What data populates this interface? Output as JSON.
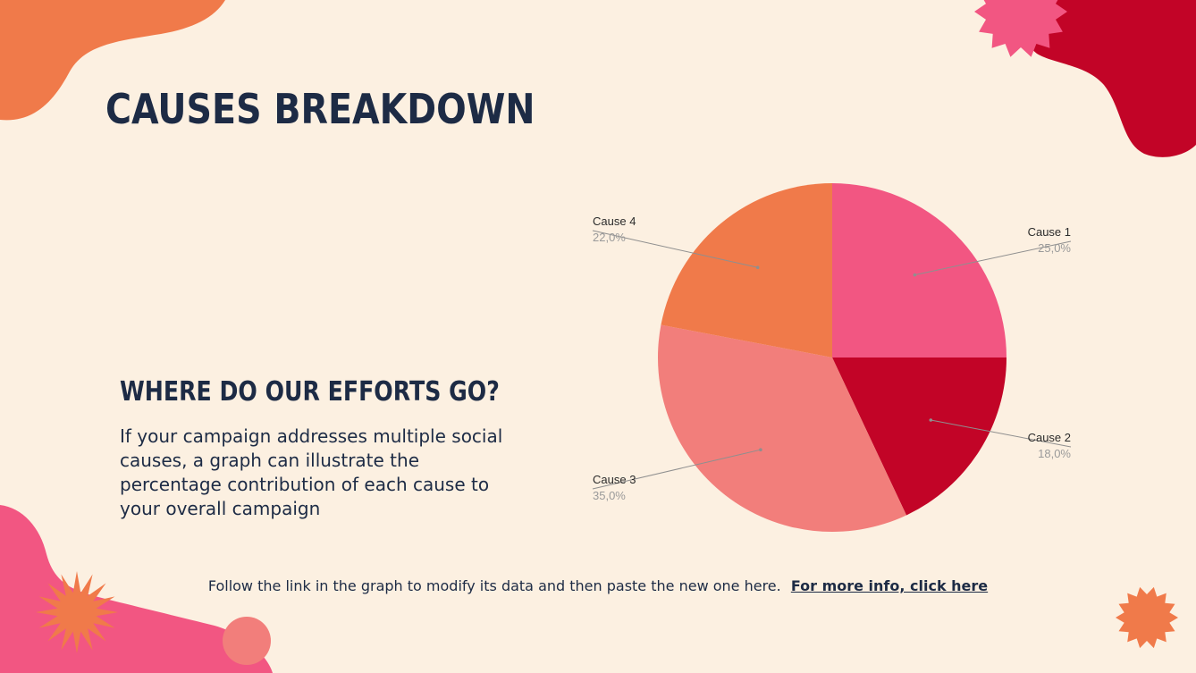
{
  "slide": {
    "title": "CAUSES BREAKDOWN",
    "subtitle": "WHERE DO OUR EFFORTS GO?",
    "body": "If your campaign addresses multiple social causes, a graph can illustrate the percentage contribution of each cause to your overall campaign",
    "footer_text": "Follow the link in the graph to modify its data and then paste the new one here.",
    "footer_link": "For more info, click here"
  },
  "colors": {
    "background": "#fcf0e1",
    "text": "#1d2b45",
    "orange": "#f07a4a",
    "pink": "#f25682",
    "crimson": "#c20427",
    "salmon": "#f27e7b"
  },
  "chart_data": {
    "type": "pie",
    "title": "",
    "start": "top, clockwise",
    "slices": [
      {
        "name": "Cause 1",
        "value": 25.0,
        "label": "25,0%",
        "color": "#f25682"
      },
      {
        "name": "Cause 2",
        "value": 18.0,
        "label": "18,0%",
        "color": "#c20427"
      },
      {
        "name": "Cause 3",
        "value": 35.0,
        "label": "35,0%",
        "color": "#f27e7b"
      },
      {
        "name": "Cause 4",
        "value": 22.0,
        "label": "22,0%",
        "color": "#f07a4a"
      }
    ]
  }
}
